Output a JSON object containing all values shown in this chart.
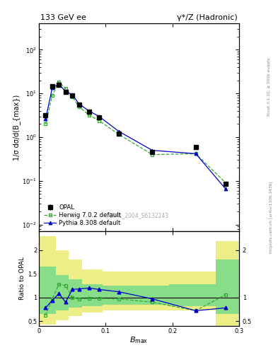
{
  "title_left": "133 GeV ee",
  "title_right": "γ*/Z (Hadronic)",
  "right_label_top": "Rivet 3.1.10, ≥ 500k events",
  "right_label_bottom": "mcplots.cern.ch [arXiv:1306.3436]",
  "watermark": "OPAL_2004_S6132243",
  "xlabel": "B_{max}",
  "ylabel_main": "1/σ dσ/d(B_{max})",
  "ylabel_ratio": "Ratio to OPAL",
  "x_data": [
    0.01,
    0.02,
    0.03,
    0.04,
    0.05,
    0.06,
    0.075,
    0.09,
    0.12,
    0.17,
    0.235,
    0.28
  ],
  "opal_y": [
    3.2,
    14.5,
    16.0,
    11.0,
    9.0,
    5.5,
    3.8,
    2.8,
    1.2,
    0.45,
    0.6,
    0.085
  ],
  "opal_yerr": [
    0.3,
    1.0,
    1.0,
    0.8,
    0.6,
    0.4,
    0.3,
    0.22,
    0.1,
    0.04,
    0.05,
    0.01
  ],
  "herwig_y": [
    2.0,
    9.0,
    18.5,
    13.0,
    8.5,
    5.0,
    3.2,
    2.4,
    1.15,
    0.4,
    0.42,
    0.09
  ],
  "pythia_y": [
    2.6,
    13.5,
    16.5,
    11.0,
    9.5,
    5.8,
    4.0,
    3.0,
    1.35,
    0.5,
    0.42,
    0.065
  ],
  "herwig_ratio": [
    0.62,
    0.97,
    1.28,
    1.25,
    1.0,
    0.97,
    0.98,
    0.98,
    0.97,
    0.9,
    0.72,
    1.06
  ],
  "pythia_ratio": [
    0.78,
    0.94,
    1.08,
    0.9,
    1.17,
    1.18,
    1.2,
    1.17,
    1.12,
    0.97,
    0.72,
    0.78
  ],
  "band_edges": [
    0.0,
    0.015,
    0.025,
    0.045,
    0.065,
    0.095,
    0.145,
    0.195,
    0.265,
    0.3
  ],
  "yellow_lo": [
    0.42,
    0.42,
    0.52,
    0.6,
    0.68,
    0.72,
    0.72,
    0.72,
    0.4,
    0.4
  ],
  "yellow_hi": [
    2.3,
    2.3,
    2.0,
    1.8,
    1.6,
    1.55,
    1.55,
    1.55,
    2.2,
    2.2
  ],
  "green_lo": [
    0.65,
    0.65,
    0.72,
    0.78,
    0.82,
    0.85,
    0.85,
    0.82,
    0.65,
    0.65
  ],
  "green_hi": [
    1.65,
    1.65,
    1.48,
    1.38,
    1.28,
    1.25,
    1.25,
    1.28,
    1.8,
    1.8
  ],
  "opal_color": "#000000",
  "herwig_color": "#33aa33",
  "pythia_color": "#0000cc",
  "yellow_color": "#eeee88",
  "green_color": "#88dd88",
  "ylim_main": [
    0.007,
    400
  ],
  "ylim_ratio": [
    0.4,
    2.4
  ],
  "xlim": [
    0.0,
    0.3
  ]
}
